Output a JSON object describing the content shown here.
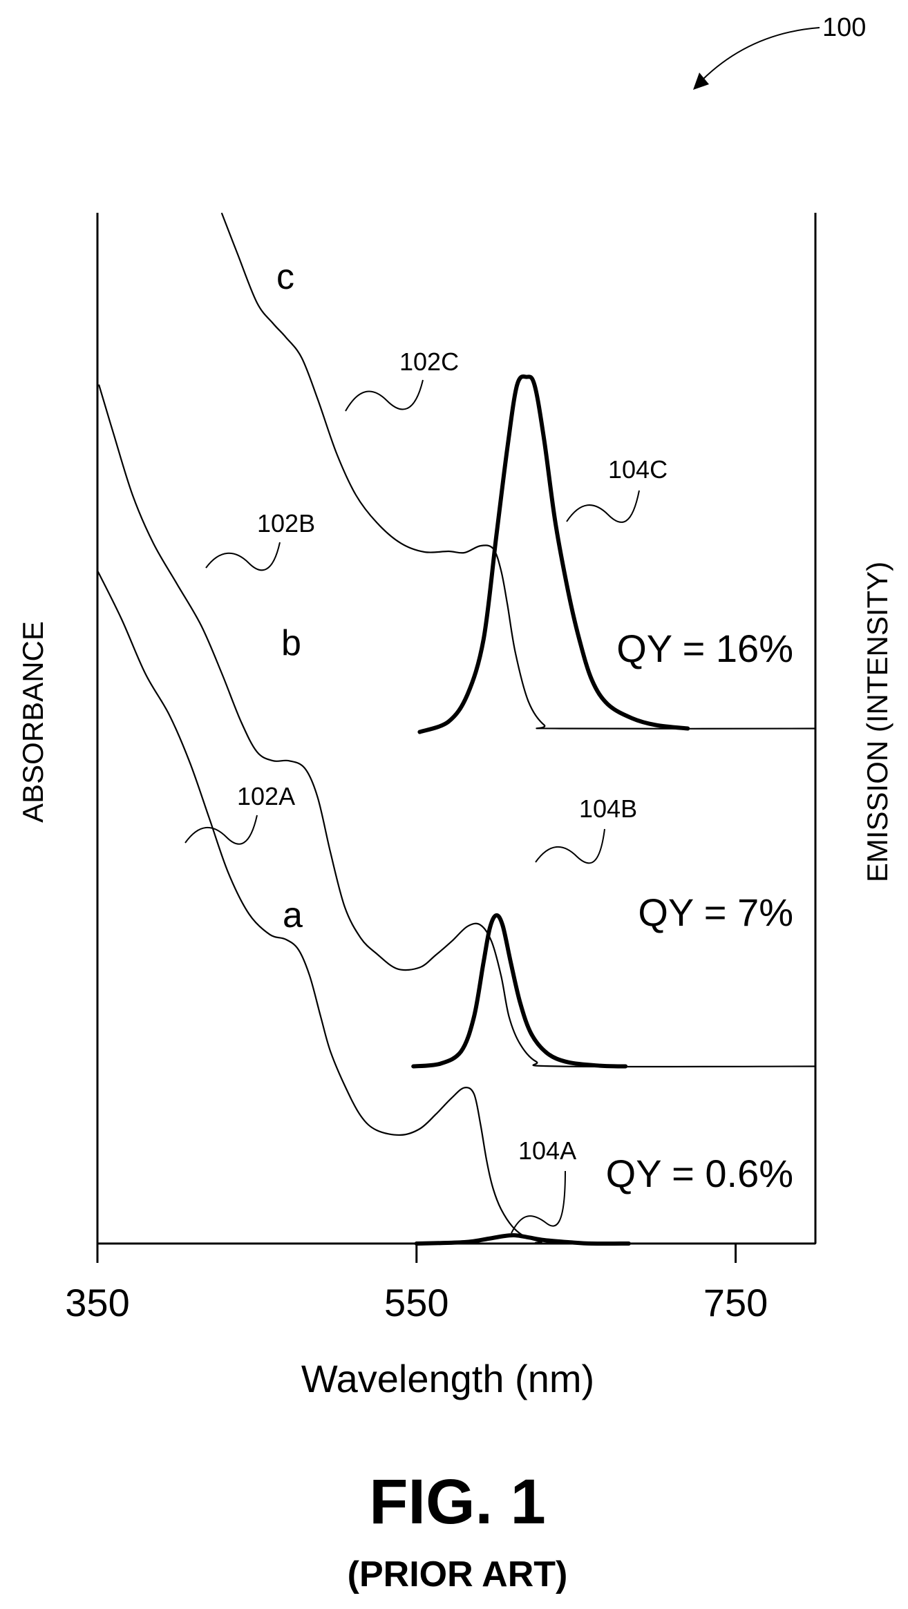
{
  "figure": {
    "ref_number": "100",
    "title": "FIG. 1",
    "subtitle": "(PRIOR ART)"
  },
  "chart_data": {
    "type": "line",
    "xlabel": "Wavelength (nm)",
    "ylabel_left": "ABSORBANCE",
    "ylabel_right": "EMISSION (INTENSITY)",
    "xlim": [
      350,
      800
    ],
    "xticks": [
      350,
      550,
      750
    ],
    "y_normalized": true,
    "series": [
      {
        "id": "a",
        "curve_label": "a",
        "kind": "absorbance",
        "ref": "102A",
        "x": [
          350,
          365,
          380,
          395,
          408,
          420,
          432,
          445,
          458,
          468,
          476,
          483,
          490,
          496,
          505,
          515,
          525,
          540,
          552,
          562,
          572,
          580,
          586,
          590,
          594,
          598,
          603,
          610,
          618,
          628,
          640,
          800
        ],
        "y": [
          0.98,
          0.91,
          0.83,
          0.77,
          0.7,
          0.62,
          0.54,
          0.48,
          0.45,
          0.443,
          0.428,
          0.39,
          0.33,
          0.28,
          0.23,
          0.186,
          0.165,
          0.158,
          0.167,
          0.188,
          0.212,
          0.227,
          0.218,
          0.175,
          0.12,
          0.08,
          0.05,
          0.025,
          0.01,
          0.003,
          0.0,
          0.0
        ]
      },
      {
        "id": "a_em",
        "kind": "emission",
        "ref": "104A",
        "quantum_yield": "QY = 0.6%",
        "x": [
          550,
          580,
          595,
          605,
          612,
          620,
          630,
          645,
          660,
          683
        ],
        "y": [
          0.0,
          0.002,
          0.007,
          0.011,
          0.012,
          0.009,
          0.005,
          0.002,
          0.0,
          0.0
        ]
      },
      {
        "id": "b",
        "curve_label": "b",
        "kind": "absorbance",
        "ref": "102B",
        "x": [
          351,
          360,
          372,
          385,
          400,
          415,
          428,
          440,
          450,
          460,
          470,
          480,
          488,
          496,
          505,
          515,
          525,
          538,
          552,
          562,
          572,
          582,
          590,
          597,
          603,
          608,
          615,
          625,
          640,
          800
        ],
        "y": [
          1.25,
          1.18,
          1.09,
          1.02,
          0.96,
          0.9,
          0.83,
          0.76,
          0.716,
          0.703,
          0.703,
          0.692,
          0.65,
          0.57,
          0.49,
          0.445,
          0.422,
          0.4,
          0.402,
          0.42,
          0.44,
          0.462,
          0.464,
          0.44,
          0.39,
          0.33,
          0.29,
          0.265,
          0.258,
          0.258
        ]
      },
      {
        "id": "b_em",
        "kind": "emission",
        "ref": "104B",
        "quantum_yield": "QY = 7%",
        "x": [
          548,
          565,
          578,
          586,
          592,
          596,
          600,
          604,
          609,
          615,
          622,
          632,
          645,
          665,
          681
        ],
        "y": [
          0.258,
          0.262,
          0.28,
          0.33,
          0.41,
          0.46,
          0.478,
          0.463,
          0.41,
          0.35,
          0.305,
          0.277,
          0.264,
          0.259,
          0.258
        ]
      },
      {
        "id": "c",
        "curve_label": "c",
        "kind": "absorbance",
        "ref": "102C",
        "x": [
          428,
          438,
          450,
          460,
          468,
          478,
          488,
          500,
          512,
          525,
          540,
          555,
          570,
          580,
          590,
          598,
          603,
          607,
          612,
          620,
          630,
          640,
          800
        ],
        "y": [
          1.5,
          1.44,
          1.37,
          1.34,
          1.32,
          1.29,
          1.23,
          1.15,
          1.09,
          1.05,
          1.02,
          1.007,
          1.008,
          1.006,
          1.016,
          1.012,
          0.98,
          0.93,
          0.86,
          0.79,
          0.755,
          0.75,
          0.75
        ]
      },
      {
        "id": "c_em",
        "kind": "emission",
        "ref": "104C",
        "quantum_yield": "QY = 16%",
        "x": [
          552,
          570,
          582,
          592,
          600,
          607,
          613,
          619,
          624,
          630,
          637,
          645,
          652,
          660,
          670,
          685,
          700,
          720
        ],
        "y": [
          0.745,
          0.76,
          0.8,
          0.88,
          1.03,
          1.16,
          1.25,
          1.262,
          1.25,
          1.17,
          1.05,
          0.95,
          0.88,
          0.82,
          0.785,
          0.765,
          0.755,
          0.75
        ]
      }
    ]
  }
}
